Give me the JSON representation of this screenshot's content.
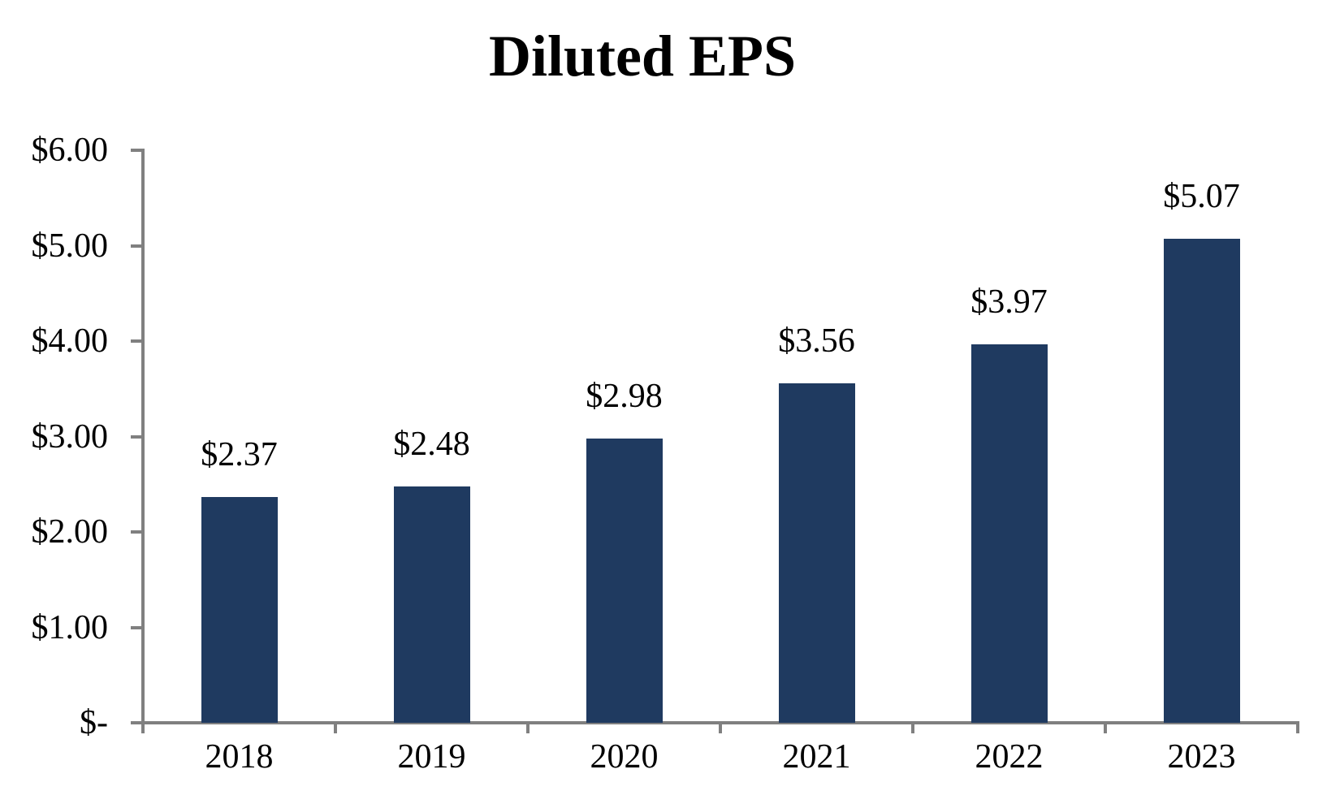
{
  "chart_data": {
    "type": "bar",
    "title": "Diluted EPS",
    "categories": [
      "2018",
      "2019",
      "2020",
      "2021",
      "2022",
      "2023"
    ],
    "values": [
      2.37,
      2.48,
      2.98,
      3.56,
      3.97,
      5.07
    ],
    "data_labels": [
      "$2.37",
      "$2.48",
      "$2.98",
      "$3.56",
      "$3.97",
      "$5.07"
    ],
    "xlabel": "",
    "ylabel": "",
    "ylim": [
      0,
      6
    ],
    "y_ticks": [
      {
        "value": 0,
        "label": "$-"
      },
      {
        "value": 1,
        "label": "$1.00"
      },
      {
        "value": 2,
        "label": "$2.00"
      },
      {
        "value": 3,
        "label": "$3.00"
      },
      {
        "value": 4,
        "label": "$4.00"
      },
      {
        "value": 5,
        "label": "$5.00"
      },
      {
        "value": 6,
        "label": "$6.00"
      }
    ],
    "grid": false,
    "legend": false,
    "bar_color": "#1F3A60",
    "axis_color": "#808080",
    "text_color": "#000000"
  }
}
